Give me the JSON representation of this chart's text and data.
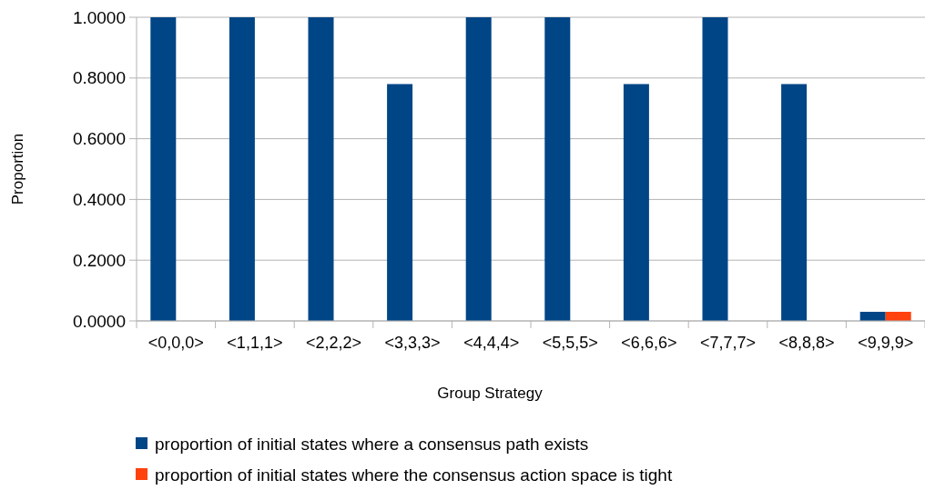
{
  "chart_data": {
    "type": "bar",
    "xlabel": "Group Strategy",
    "ylabel": "Proportion",
    "categories": [
      "<0,0,0>",
      "<1,1,1>",
      "<2,2,2>",
      "<3,3,3>",
      "<4,4,4>",
      "<5,5,5>",
      "<6,6,6>",
      "<7,7,7>",
      "<8,8,8>",
      "<9,9,9>"
    ],
    "series": [
      {
        "name": "proportion of initial states where a consensus path exists",
        "color": "#004586",
        "values": [
          1,
          1,
          1,
          0.78,
          1,
          1,
          0.78,
          1,
          0.78,
          0.03
        ]
      },
      {
        "name": "proportion of initial states where the consensus action space is tight",
        "color": "#ff420e",
        "values": [
          0,
          0,
          0,
          0,
          0,
          0,
          0,
          0,
          0,
          0.03
        ]
      }
    ],
    "ylim": [
      0,
      1
    ],
    "yticks": [
      {
        "value": 0,
        "label": "0.0000"
      },
      {
        "value": 0.2,
        "label": "0.2000"
      },
      {
        "value": 0.4,
        "label": "0.4000"
      },
      {
        "value": 0.6,
        "label": "0.6000"
      },
      {
        "value": 0.8,
        "label": "0.8000"
      },
      {
        "value": 1,
        "label": "1.0000"
      }
    ],
    "grid": "y",
    "legend": "bottom"
  }
}
